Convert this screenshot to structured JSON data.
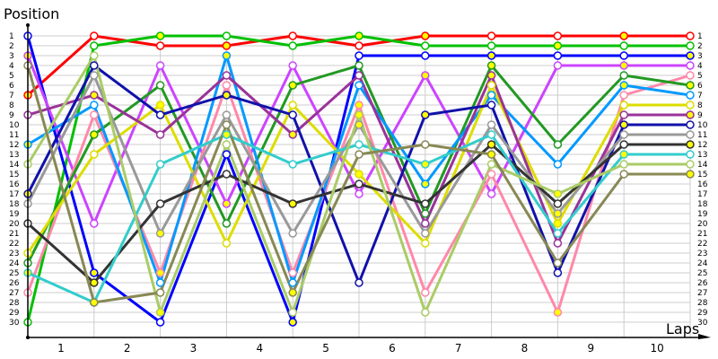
{
  "chart_data": {
    "type": "line",
    "title": "",
    "ylabel": "Position",
    "xlabel": "Laps",
    "x_tick_labels": [
      "1",
      "2",
      "3",
      "4",
      "5",
      "6",
      "7",
      "8",
      "9",
      "10"
    ],
    "y_tick_labels": [
      "1",
      "2",
      "3",
      "4",
      "5",
      "6",
      "7",
      "8",
      "9",
      "10",
      "11",
      "12",
      "13",
      "14",
      "15",
      "16",
      "17",
      "18",
      "19",
      "20",
      "21",
      "22",
      "23",
      "24",
      "25",
      "26",
      "27",
      "28",
      "29",
      "30"
    ],
    "ylim": [
      30,
      1
    ],
    "grid": true,
    "legend": "none",
    "x": [
      0,
      1,
      2,
      3,
      4,
      5,
      6,
      7,
      8,
      9,
      10
    ],
    "series": [
      {
        "name": "red",
        "color": "#ff0000",
        "values": [
          7,
          1,
          2,
          2,
          1,
          2,
          1,
          1,
          1,
          1,
          1
        ]
      },
      {
        "name": "green",
        "color": "#00c000",
        "values": [
          30,
          2,
          1,
          1,
          2,
          1,
          2,
          2,
          2,
          2,
          2
        ]
      },
      {
        "name": "blue",
        "color": "#0000ff",
        "values": [
          1,
          25,
          30,
          13,
          30,
          3,
          3,
          3,
          3,
          3,
          3
        ]
      },
      {
        "name": "violet",
        "color": "#cc44ff",
        "values": [
          3,
          20,
          4,
          18,
          4,
          17,
          5,
          17,
          4,
          4,
          4
        ]
      },
      {
        "name": "pink",
        "color": "#ff88aa",
        "values": [
          27,
          9,
          25,
          6,
          25,
          8,
          27,
          15,
          29,
          7,
          5
        ]
      },
      {
        "name": "darkgreen",
        "color": "#229922",
        "values": [
          24,
          11,
          6,
          20,
          6,
          4,
          19,
          4,
          12,
          5,
          6
        ]
      },
      {
        "name": "skyblue",
        "color": "#0099ff",
        "values": [
          12,
          8,
          26,
          3,
          26,
          6,
          16,
          7,
          14,
          6,
          7
        ]
      },
      {
        "name": "yellow",
        "color": "#dddd00",
        "values": [
          23,
          13,
          8,
          22,
          8,
          15,
          22,
          6,
          20,
          8,
          8
        ]
      },
      {
        "name": "purple",
        "color": "#993399",
        "values": [
          9,
          7,
          11,
          5,
          11,
          5,
          20,
          5,
          22,
          9,
          9
        ]
      },
      {
        "name": "navy",
        "color": "#1111aa",
        "values": [
          17,
          4,
          9,
          7,
          9,
          26,
          9,
          8,
          25,
          10,
          10
        ]
      },
      {
        "name": "gray",
        "color": "#999999",
        "values": [
          18,
          5,
          21,
          9,
          21,
          10,
          21,
          10,
          19,
          11,
          11
        ]
      },
      {
        "name": "black",
        "color": "#333333",
        "values": [
          20,
          26,
          18,
          15,
          18,
          16,
          18,
          12,
          18,
          12,
          12
        ]
      },
      {
        "name": "turquoise",
        "color": "#33cccc",
        "values": [
          25,
          28,
          14,
          11,
          14,
          12,
          14,
          11,
          21,
          13,
          13
        ]
      },
      {
        "name": "olivegreen",
        "color": "#aacc66",
        "values": [
          14,
          3,
          29,
          12,
          29,
          9,
          29,
          14,
          17,
          14,
          14
        ]
      },
      {
        "name": "olive",
        "color": "#888855",
        "values": [
          4,
          28,
          27,
          10,
          27,
          13,
          12,
          13,
          24,
          15,
          15
        ]
      }
    ]
  },
  "axes": {
    "y_title": "Position",
    "x_title": "Laps"
  }
}
